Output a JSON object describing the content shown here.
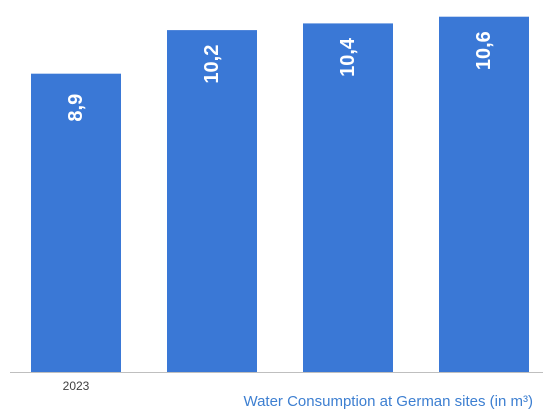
{
  "chart_data": {
    "type": "bar",
    "categories": [
      "2023",
      "",
      "",
      ""
    ],
    "values": [
      8.9,
      10.2,
      10.4,
      10.6
    ],
    "value_labels": [
      "8,9",
      "10,2",
      "10,4",
      "10,6"
    ],
    "xlabel": "Water Consumption at German sites (in m³)",
    "ylabel": "",
    "ylim": [
      0,
      10.8
    ],
    "grid": false,
    "legend": "none"
  },
  "colors": {
    "bar": "#3a78d6",
    "axis": "#bfbfbf",
    "caption": "#3d7fd1"
  }
}
